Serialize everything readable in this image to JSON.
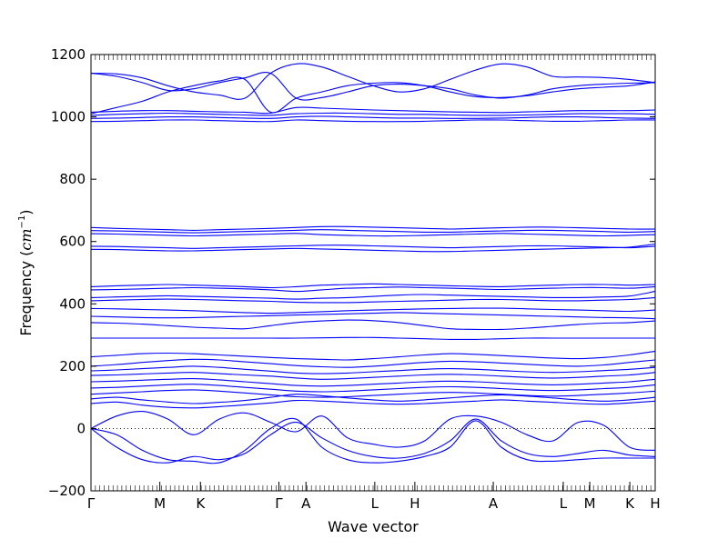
{
  "chart_data": {
    "type": "line",
    "title": "",
    "xlabel": "Wave vector",
    "ylabel": "Frequency (",
    "ylabel_math": "cm",
    "ylabel_sup": "−1",
    "ylabel_close": ")",
    "ylim": [
      -200,
      1200
    ],
    "yticks": [
      -200,
      0,
      200,
      400,
      600,
      800,
      1000,
      1200
    ],
    "ytick_labels": [
      "−200",
      "0",
      "200",
      "400",
      "600",
      "800",
      "1000",
      "1200"
    ],
    "xlim": [
      0,
      1
    ],
    "xticks": [
      {
        "label": "Γ",
        "pos": 0.0
      },
      {
        "label": "M",
        "pos": 0.122
      },
      {
        "label": "K",
        "pos": 0.194
      },
      {
        "label": "Γ",
        "pos": 0.333
      },
      {
        "label": "A",
        "pos": 0.381
      },
      {
        "label": "L",
        "pos": 0.503
      },
      {
        "label": "H",
        "pos": 0.574
      },
      {
        "label": "A",
        "pos": 0.713
      },
      {
        "label": "L",
        "pos": 0.837
      },
      {
        "label": "M",
        "pos": 0.884
      },
      {
        "label": "K",
        "pos": 0.955
      },
      {
        "label": "H",
        "pos": 1.0
      }
    ],
    "zero_line": true,
    "grid": false,
    "line_color": "#0000ff",
    "bands": [
      {
        "y": [
          1140,
          1138,
          1125,
          1100,
          1080,
          1070,
          1060,
          1140,
          1170,
          1160,
          1130,
          1100,
          1080,
          1090,
          1120,
          1150,
          1170,
          1160,
          1130,
          1128,
          1126,
          1120,
          1110
        ]
      },
      {
        "y": [
          1140,
          1130,
          1110,
          1085,
          1090,
          1110,
          1125,
          1140,
          1060,
          1062,
          1080,
          1100,
          1105,
          1100,
          1090,
          1070,
          1060,
          1070,
          1090,
          1100,
          1105,
          1108,
          1110
        ]
      },
      {
        "y": [
          1010,
          1030,
          1050,
          1080,
          1100,
          1115,
          1120,
          1015,
          1060,
          1080,
          1100,
          1108,
          1110,
          1100,
          1080,
          1065,
          1062,
          1068,
          1080,
          1090,
          1095,
          1100,
          1112
        ]
      },
      {
        "y": [
          1015,
          1018,
          1020,
          1020,
          1018,
          1016,
          1015,
          1012,
          1030,
          1028,
          1025,
          1022,
          1020,
          1018,
          1016,
          1015,
          1014,
          1016,
          1018,
          1020,
          1020,
          1020,
          1022
        ]
      },
      {
        "y": [
          1005,
          1008,
          1010,
          1012,
          1010,
          1008,
          1006,
          1005,
          1010,
          1012,
          1012,
          1010,
          1008,
          1008,
          1006,
          1005,
          1005,
          1006,
          1008,
          1010,
          1010,
          1010,
          1008
        ]
      },
      {
        "y": [
          995,
          996,
          998,
          1000,
          1000,
          998,
          996,
          995,
          1000,
          1002,
          1000,
          998,
          996,
          996,
          995,
          995,
          996,
          998,
          1000,
          1000,
          998,
          996,
          995
        ]
      },
      {
        "y": [
          985,
          986,
          988,
          990,
          990,
          988,
          986,
          985,
          990,
          988,
          986,
          985,
          985,
          986,
          988,
          990,
          990,
          988,
          986,
          986,
          988,
          990,
          990
        ]
      },
      {
        "y": [
          645,
          642,
          640,
          638,
          636,
          638,
          640,
          642,
          645,
          648,
          648,
          646,
          644,
          642,
          640,
          642,
          644,
          646,
          646,
          644,
          642,
          640,
          640
        ]
      },
      {
        "y": [
          635,
          634,
          632,
          630,
          628,
          630,
          632,
          634,
          636,
          638,
          636,
          634,
          632,
          630,
          630,
          632,
          634,
          636,
          636,
          634,
          632,
          630,
          632
        ]
      },
      {
        "y": [
          625,
          624,
          622,
          620,
          618,
          620,
          622,
          624,
          626,
          622,
          620,
          618,
          618,
          620,
          622,
          624,
          626,
          624,
          622,
          620,
          618,
          620,
          622
        ]
      },
      {
        "y": [
          585,
          584,
          582,
          580,
          578,
          580,
          582,
          584,
          586,
          588,
          588,
          586,
          584,
          582,
          580,
          582,
          584,
          586,
          586,
          584,
          582,
          580,
          585
        ]
      },
      {
        "y": [
          575,
          574,
          572,
          570,
          570,
          572,
          574,
          576,
          578,
          576,
          574,
          572,
          570,
          568,
          568,
          570,
          572,
          574,
          576,
          578,
          580,
          582,
          592
        ]
      },
      {
        "y": [
          455,
          458,
          460,
          462,
          460,
          458,
          455,
          452,
          455,
          460,
          462,
          464,
          462,
          460,
          458,
          456,
          455,
          458,
          460,
          462,
          462,
          460,
          462
        ]
      },
      {
        "y": [
          445,
          446,
          448,
          450,
          452,
          450,
          448,
          445,
          440,
          445,
          450,
          452,
          454,
          452,
          450,
          448,
          446,
          448,
          450,
          452,
          452,
          450,
          455
        ]
      },
      {
        "y": [
          420,
          422,
          424,
          426,
          424,
          422,
          420,
          418,
          415,
          418,
          420,
          424,
          428,
          430,
          428,
          426,
          424,
          422,
          420,
          420,
          422,
          425,
          440
        ]
      },
      {
        "y": [
          410,
          412,
          414,
          415,
          414,
          412,
          410,
          408,
          405,
          404,
          404,
          406,
          408,
          410,
          412,
          414,
          414,
          412,
          410,
          410,
          412,
          414,
          420
        ]
      },
      {
        "y": [
          385,
          384,
          382,
          380,
          378,
          375,
          372,
          370,
          372,
          375,
          378,
          380,
          382,
          384,
          385,
          386,
          386,
          384,
          382,
          380,
          378,
          376,
          380
        ]
      },
      {
        "y": [
          360,
          358,
          356,
          355,
          356,
          358,
          360,
          362,
          364,
          366,
          368,
          370,
          372,
          370,
          368,
          366,
          364,
          362,
          360,
          358,
          356,
          355,
          352
        ]
      },
      {
        "y": [
          340,
          338,
          335,
          330,
          325,
          322,
          320,
          330,
          340,
          345,
          348,
          346,
          340,
          330,
          320,
          318,
          318,
          322,
          328,
          334,
          338,
          340,
          345
        ]
      },
      {
        "y": [
          290,
          290,
          290,
          290,
          290,
          290,
          290,
          290,
          290,
          291,
          292,
          292,
          290,
          288,
          286,
          286,
          288,
          290,
          290,
          290,
          290,
          290,
          290
        ]
      },
      {
        "y": [
          230,
          235,
          240,
          242,
          240,
          236,
          232,
          228,
          224,
          222,
          220,
          224,
          230,
          236,
          240,
          238,
          234,
          230,
          226,
          224,
          228,
          236,
          248
        ]
      },
      {
        "y": [
          200,
          205,
          212,
          218,
          222,
          220,
          214,
          208,
          202,
          198,
          196,
          200,
          206,
          212,
          216,
          214,
          210,
          206,
          202,
          200,
          204,
          212,
          220
        ]
      },
      {
        "y": [
          185,
          188,
          192,
          196,
          200,
          196,
          190,
          184,
          178,
          176,
          178,
          182,
          186,
          190,
          192,
          190,
          186,
          182,
          180,
          182,
          186,
          190,
          196
        ]
      },
      {
        "y": [
          170,
          172,
          175,
          178,
          180,
          176,
          172,
          168,
          162,
          158,
          160,
          164,
          168,
          172,
          174,
          172,
          168,
          164,
          162,
          164,
          168,
          172,
          180
        ]
      },
      {
        "y": [
          150,
          152,
          155,
          158,
          160,
          156,
          150,
          144,
          138,
          136,
          138,
          142,
          146,
          150,
          152,
          150,
          146,
          142,
          140,
          142,
          146,
          150,
          158
        ]
      },
      {
        "y": [
          130,
          132,
          136,
          140,
          142,
          138,
          132,
          126,
          120,
          118,
          120,
          124,
          128,
          132,
          134,
          132,
          128,
          124,
          122,
          124,
          128,
          132,
          140
        ]
      },
      {
        "y": [
          110,
          114,
          118,
          122,
          124,
          120,
          114,
          108,
          102,
          100,
          102,
          106,
          110,
          114,
          116,
          114,
          110,
          106,
          104,
          106,
          110,
          114,
          120
        ]
      },
      {
        "y": [
          95,
          100,
          92,
          85,
          80,
          84,
          90,
          100,
          110,
          105,
          98,
          92,
          88,
          92,
          98,
          104,
          108,
          104,
          98,
          92,
          88,
          92,
          100
        ]
      },
      {
        "y": [
          80,
          85,
          75,
          68,
          66,
          70,
          76,
          82,
          90,
          88,
          84,
          80,
          78,
          80,
          84,
          88,
          92,
          88,
          84,
          80,
          78,
          82,
          88
        ]
      },
      {
        "y": [
          0,
          40,
          55,
          30,
          -20,
          30,
          50,
          20,
          -10,
          40,
          -30,
          -50,
          -60,
          -40,
          30,
          40,
          20,
          -20,
          -40,
          20,
          10,
          -60,
          -70
        ]
      },
      {
        "y": [
          0,
          -60,
          -100,
          -110,
          -90,
          -100,
          -80,
          -20,
          20,
          -30,
          -70,
          -90,
          -95,
          -80,
          -40,
          30,
          -40,
          -80,
          -90,
          -80,
          -70,
          -85,
          -90
        ]
      },
      {
        "y": [
          0,
          -20,
          -70,
          -100,
          -105,
          -110,
          -70,
          0,
          30,
          -60,
          -100,
          -110,
          -105,
          -90,
          -60,
          25,
          -60,
          -100,
          -105,
          -100,
          -95,
          -95,
          -95
        ]
      }
    ]
  }
}
